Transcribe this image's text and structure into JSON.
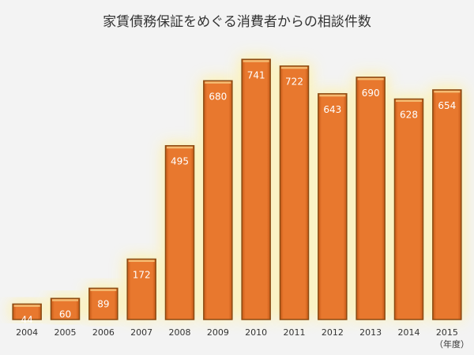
{
  "chart_data": {
    "type": "bar",
    "title": "家賃債務保証をめぐる消費者からの相談件数",
    "xlabel": "",
    "ylabel": "",
    "x_unit": "（年度）",
    "categories": [
      "2004",
      "2005",
      "2006",
      "2007",
      "2008",
      "2009",
      "2010",
      "2011",
      "2012",
      "2013",
      "2014",
      "2015"
    ],
    "values": [
      44,
      60,
      89,
      172,
      495,
      680,
      741,
      722,
      643,
      690,
      628,
      654
    ],
    "ylim": [
      0,
      800
    ],
    "grid": false,
    "legend": "none",
    "colors": {
      "background": "#f3f3f3",
      "bar_fill": "#e8782e",
      "bar_border": "#8a4a12",
      "bar_top": "#f5c27a",
      "glow": "#fff2a6",
      "label": "#ffffff",
      "text": "#333333"
    }
  }
}
